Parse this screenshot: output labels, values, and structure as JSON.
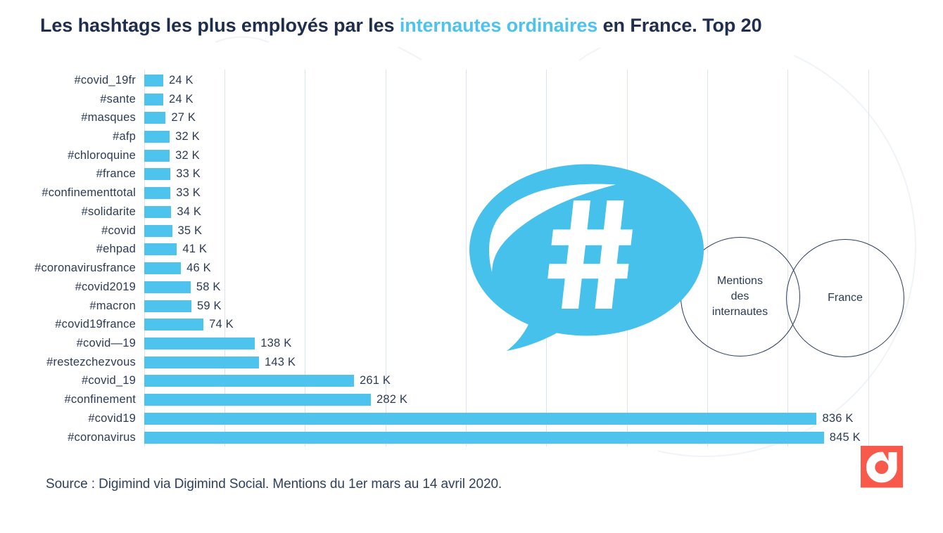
{
  "title": {
    "prefix": "Les hashtags les plus employés par les ",
    "highlight": "internautes ordinaires",
    "suffix": " en France. Top 20"
  },
  "chart_data": {
    "type": "bar",
    "orientation": "horizontal",
    "title": "Les hashtags les plus employés par les internautes ordinaires en France. Top 20",
    "categories": [
      "#covid_19fr",
      "#sante",
      "#masques",
      "#afp",
      "#chloroquine",
      "#france",
      "#confinementtotal",
      "#solidarite",
      "#covid",
      "#ehpad",
      "#coronavirusfrance",
      "#covid2019",
      "#macron",
      "#covid19france",
      "#covid—19",
      "#restezchezvous",
      "#covid_19",
      "#confinement",
      "#covid19",
      "#coronavirus"
    ],
    "values": [
      24,
      24,
      27,
      32,
      32,
      33,
      33,
      34,
      35,
      41,
      46,
      58,
      59,
      74,
      138,
      143,
      261,
      282,
      836,
      845
    ],
    "value_labels": [
      "24 K",
      "24 K",
      "27 K",
      "32 K",
      "32 K",
      "33 K",
      "33 K",
      "34 K",
      "35 K",
      "41 K",
      "46 K",
      "58 K",
      "59 K",
      "74 K",
      "138 K",
      "143 K",
      "261 K",
      "282 K",
      "836 K",
      "845 K"
    ],
    "unit": "K",
    "xlabel": "",
    "ylabel": "",
    "xlim": [
      0,
      900
    ],
    "grid_step": 100,
    "grid": true,
    "legend": false,
    "bar_color": "#4dc3ed"
  },
  "annotations": {
    "bubble_symbol": "#",
    "venn_circles": [
      {
        "label": "Mentions des internautes",
        "lines": [
          "Mentions",
          "des",
          "internautes"
        ]
      },
      {
        "label": "France",
        "lines": [
          "France"
        ]
      }
    ]
  },
  "source_note": "Source : Digimind via Digimind Social. Mentions du 1er mars au 14 avril 2020.",
  "logo": {
    "brand": "Digimind",
    "letter": "d"
  },
  "colors": {
    "title_navy": "#1f2e4d",
    "title_highlight": "#4cc3ee",
    "bar_blue": "#4dc3ed",
    "bubble_blue": "#46c1ec",
    "label_navy": "#2d3b55",
    "gridline": "#dce3f2",
    "venn_outline": "#2b3d5e",
    "logo_red": "#f9594b",
    "background": "#ffffff"
  }
}
